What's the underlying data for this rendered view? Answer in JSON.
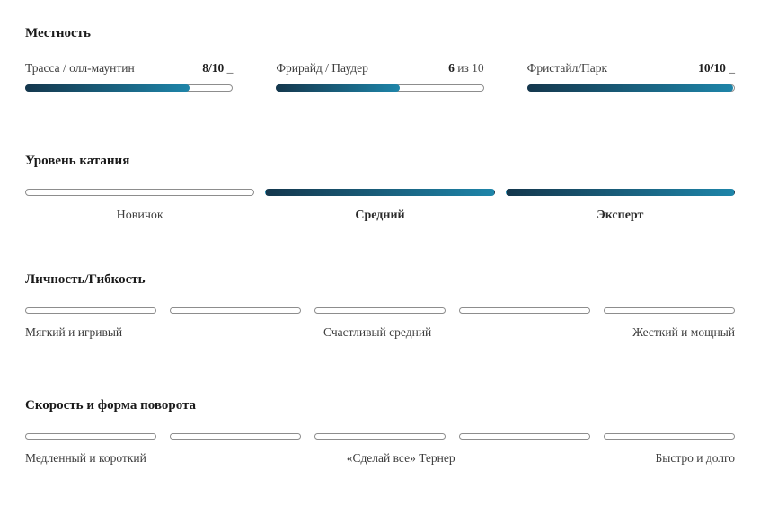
{
  "colors": {
    "grad_start": "#14374d",
    "grad_end": "#1e85a9",
    "bar_border": "#8d8d8d",
    "title_text": "#1a1a1a",
    "body_text": "#3d3d3d"
  },
  "terrain": {
    "title": "Местность",
    "items": [
      {
        "label": "Трасса / олл-маунтин",
        "value_bold": "8/10",
        "value_suffix": " _",
        "percent": 80
      },
      {
        "label": "Фрирайд / Паудер",
        "value_bold": "6",
        "value_suffix": " из 10",
        "percent": 60
      },
      {
        "label": "Фристайл/Парк",
        "value_bold": "10/10",
        "value_suffix": " _",
        "percent": 100
      }
    ]
  },
  "skill": {
    "title": "Уровень катания",
    "segments": [
      {
        "label": "Новичок",
        "filled": false,
        "bold": false
      },
      {
        "label": "Средний",
        "filled": true,
        "bold": true
      },
      {
        "label": "Эксперт",
        "filled": true,
        "bold": true
      }
    ]
  },
  "flex": {
    "title": "Личность/Гибкость",
    "segments": [
      {
        "filled": false
      },
      {
        "filled": true
      },
      {
        "filled": false
      },
      {
        "filled": false
      },
      {
        "filled": false
      }
    ],
    "labels": {
      "left": "Мягкий и игривый",
      "center": "Счастливый средний",
      "right": "Жесткий и мощный"
    }
  },
  "turn": {
    "title": "Скорость и форма поворота",
    "segments": [
      {
        "filled": false
      },
      {
        "filled": true
      },
      {
        "filled": false
      },
      {
        "filled": false
      },
      {
        "filled": false
      }
    ],
    "labels": {
      "left": "Медленный и короткий",
      "center": "«Сделай все» Тернер",
      "right": "Быстро и долго"
    }
  }
}
